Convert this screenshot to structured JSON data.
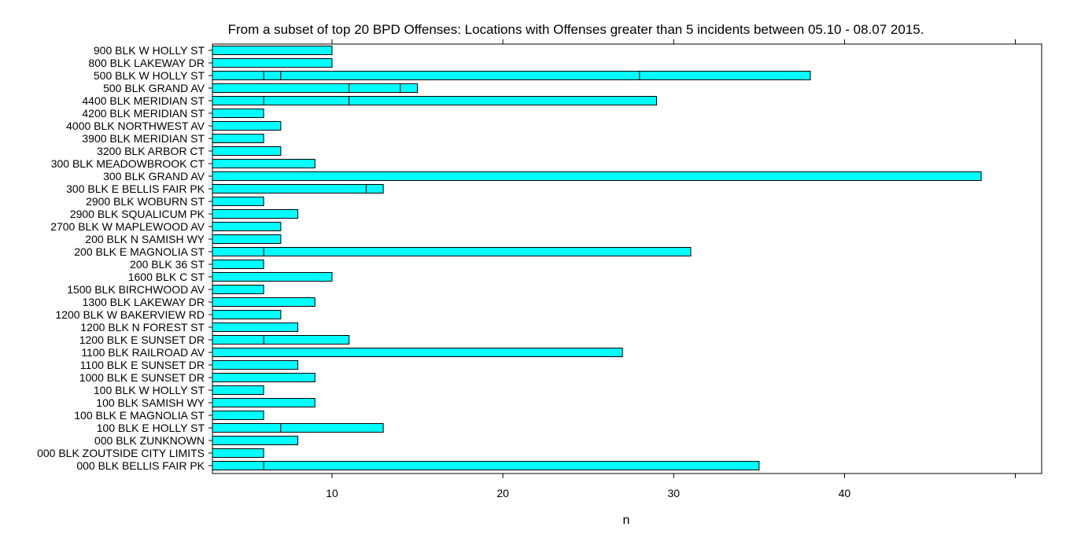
{
  "chart_data": {
    "type": "bar",
    "orientation": "horizontal",
    "stacked": true,
    "title": "From a subset of top 20 BPD Offenses: Locations with Offenses greater than 5 incidents between 05.10 - 08.07 2015.",
    "xlabel": "n",
    "ylabel": "",
    "xlim": [
      3,
      50
    ],
    "xticks": [
      10,
      20,
      30,
      40
    ],
    "fill_color": "#00FFFF",
    "edge_color": "#000000",
    "categories": [
      "900 BLK W HOLLY ST",
      "800 BLK LAKEWAY DR",
      "500 BLK W HOLLY ST",
      "500 BLK GRAND AV",
      "4400 BLK MERIDIAN ST",
      "4200 BLK MERIDIAN ST",
      "4000 BLK NORTHWEST AV",
      "3900 BLK MERIDIAN ST",
      "3200 BLK ARBOR CT",
      "300 BLK MEADOWBROOK CT",
      "300 BLK GRAND AV",
      "300 BLK E BELLIS FAIR PK",
      "2900 BLK WOBURN ST",
      "2900 BLK SQUALICUM PK",
      "2700 BLK W MAPLEWOOD AV",
      "200 BLK N SAMISH WY",
      "200 BLK E MAGNOLIA ST",
      "200 BLK 36 ST",
      "1600 BLK C ST",
      "1500 BLK BIRCHWOOD AV",
      "1300 BLK LAKEWAY DR",
      "1200 BLK W BAKERVIEW RD",
      "1200 BLK N FOREST ST",
      "1200 BLK E SUNSET DR",
      "1100 BLK RAILROAD AV",
      "1100 BLK E SUNSET DR",
      "1000 BLK E SUNSET DR",
      "100 BLK W HOLLY ST",
      "100 BLK SAMISH WY",
      "100 BLK E MAGNOLIA ST",
      "100 BLK E HOLLY ST",
      "000 BLK ZUNKNOWN",
      "000 BLK ZOUTSIDE CITY LIMITS",
      "000 BLK BELLIS FAIR PK"
    ],
    "segments": [
      [
        10
      ],
      [
        10
      ],
      [
        6,
        1,
        21,
        10
      ],
      [
        11,
        3,
        1
      ],
      [
        6,
        5,
        18
      ],
      [
        6
      ],
      [
        7
      ],
      [
        6
      ],
      [
        7
      ],
      [
        9
      ],
      [
        48
      ],
      [
        12,
        1
      ],
      [
        6
      ],
      [
        8
      ],
      [
        7
      ],
      [
        7
      ],
      [
        6,
        25
      ],
      [
        6
      ],
      [
        10
      ],
      [
        6
      ],
      [
        9
      ],
      [
        7
      ],
      [
        8
      ],
      [
        6,
        5
      ],
      [
        27
      ],
      [
        8
      ],
      [
        9
      ],
      [
        6
      ],
      [
        9
      ],
      [
        6
      ],
      [
        7,
        6
      ],
      [
        8
      ],
      [
        6
      ],
      [
        6,
        29
      ]
    ]
  }
}
